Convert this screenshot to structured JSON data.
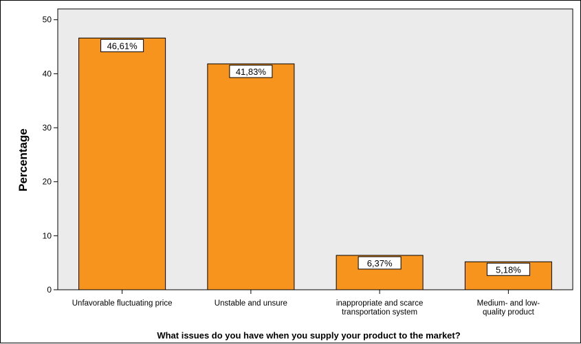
{
  "chart_data": {
    "type": "bar",
    "title": "",
    "xlabel": "What issues do you have when you supply your product to the market?",
    "ylabel": "Percentage",
    "ylim": [
      0,
      52
    ],
    "yticks": [
      0,
      10,
      20,
      30,
      40,
      50
    ],
    "grid": false,
    "categories": [
      [
        "Unfavorable fluctuating price"
      ],
      [
        "Unstable and unsure"
      ],
      [
        "inappropriate and scarce",
        "transportation system"
      ],
      [
        "Medium- and low-",
        "quality product"
      ]
    ],
    "values": [
      46.61,
      41.83,
      6.37,
      5.18
    ],
    "data_labels": [
      "46,61%",
      "41,83%",
      "6,37%",
      "5,18%"
    ],
    "colors": {
      "bar": "#F7941D",
      "plot_background": "#EBEBEB",
      "axis": "#000000"
    }
  }
}
